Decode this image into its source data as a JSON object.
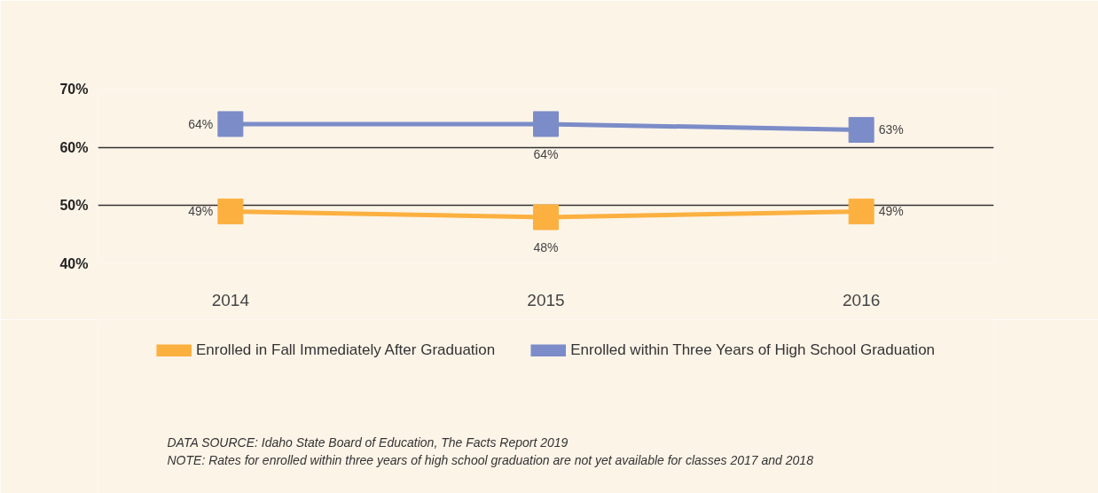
{
  "chart_data": {
    "type": "line",
    "categories": [
      "2014",
      "2015",
      "2016"
    ],
    "series": [
      {
        "name": "Enrolled in Fall Immediately After Graduation",
        "color": "#fbb040",
        "values": [
          49,
          48,
          49
        ],
        "value_labels": [
          "49%",
          "48%",
          "49%"
        ]
      },
      {
        "name": "Enrolled within Three Years of High School Graduation",
        "color": "#7b8cc8",
        "values": [
          64,
          64,
          63
        ],
        "value_labels": [
          "64%",
          "64%",
          "63%"
        ]
      }
    ],
    "ylim": [
      40,
      70
    ],
    "yticks": [
      {
        "value": 40,
        "label": "40%"
      },
      {
        "value": 50,
        "label": "50%"
      },
      {
        "value": 60,
        "label": "60%"
      },
      {
        "value": 70,
        "label": "70%"
      }
    ],
    "grid": "y",
    "legend": "bottom",
    "marker": "square",
    "line_style": "solid",
    "annotations": [
      "DATA SOURCE: Idaho State Board of Education, The Facts Report 2019",
      "NOTE: Rates for enrolled within three years of high school graduation are not yet available for classes 2017 and 2018"
    ]
  }
}
